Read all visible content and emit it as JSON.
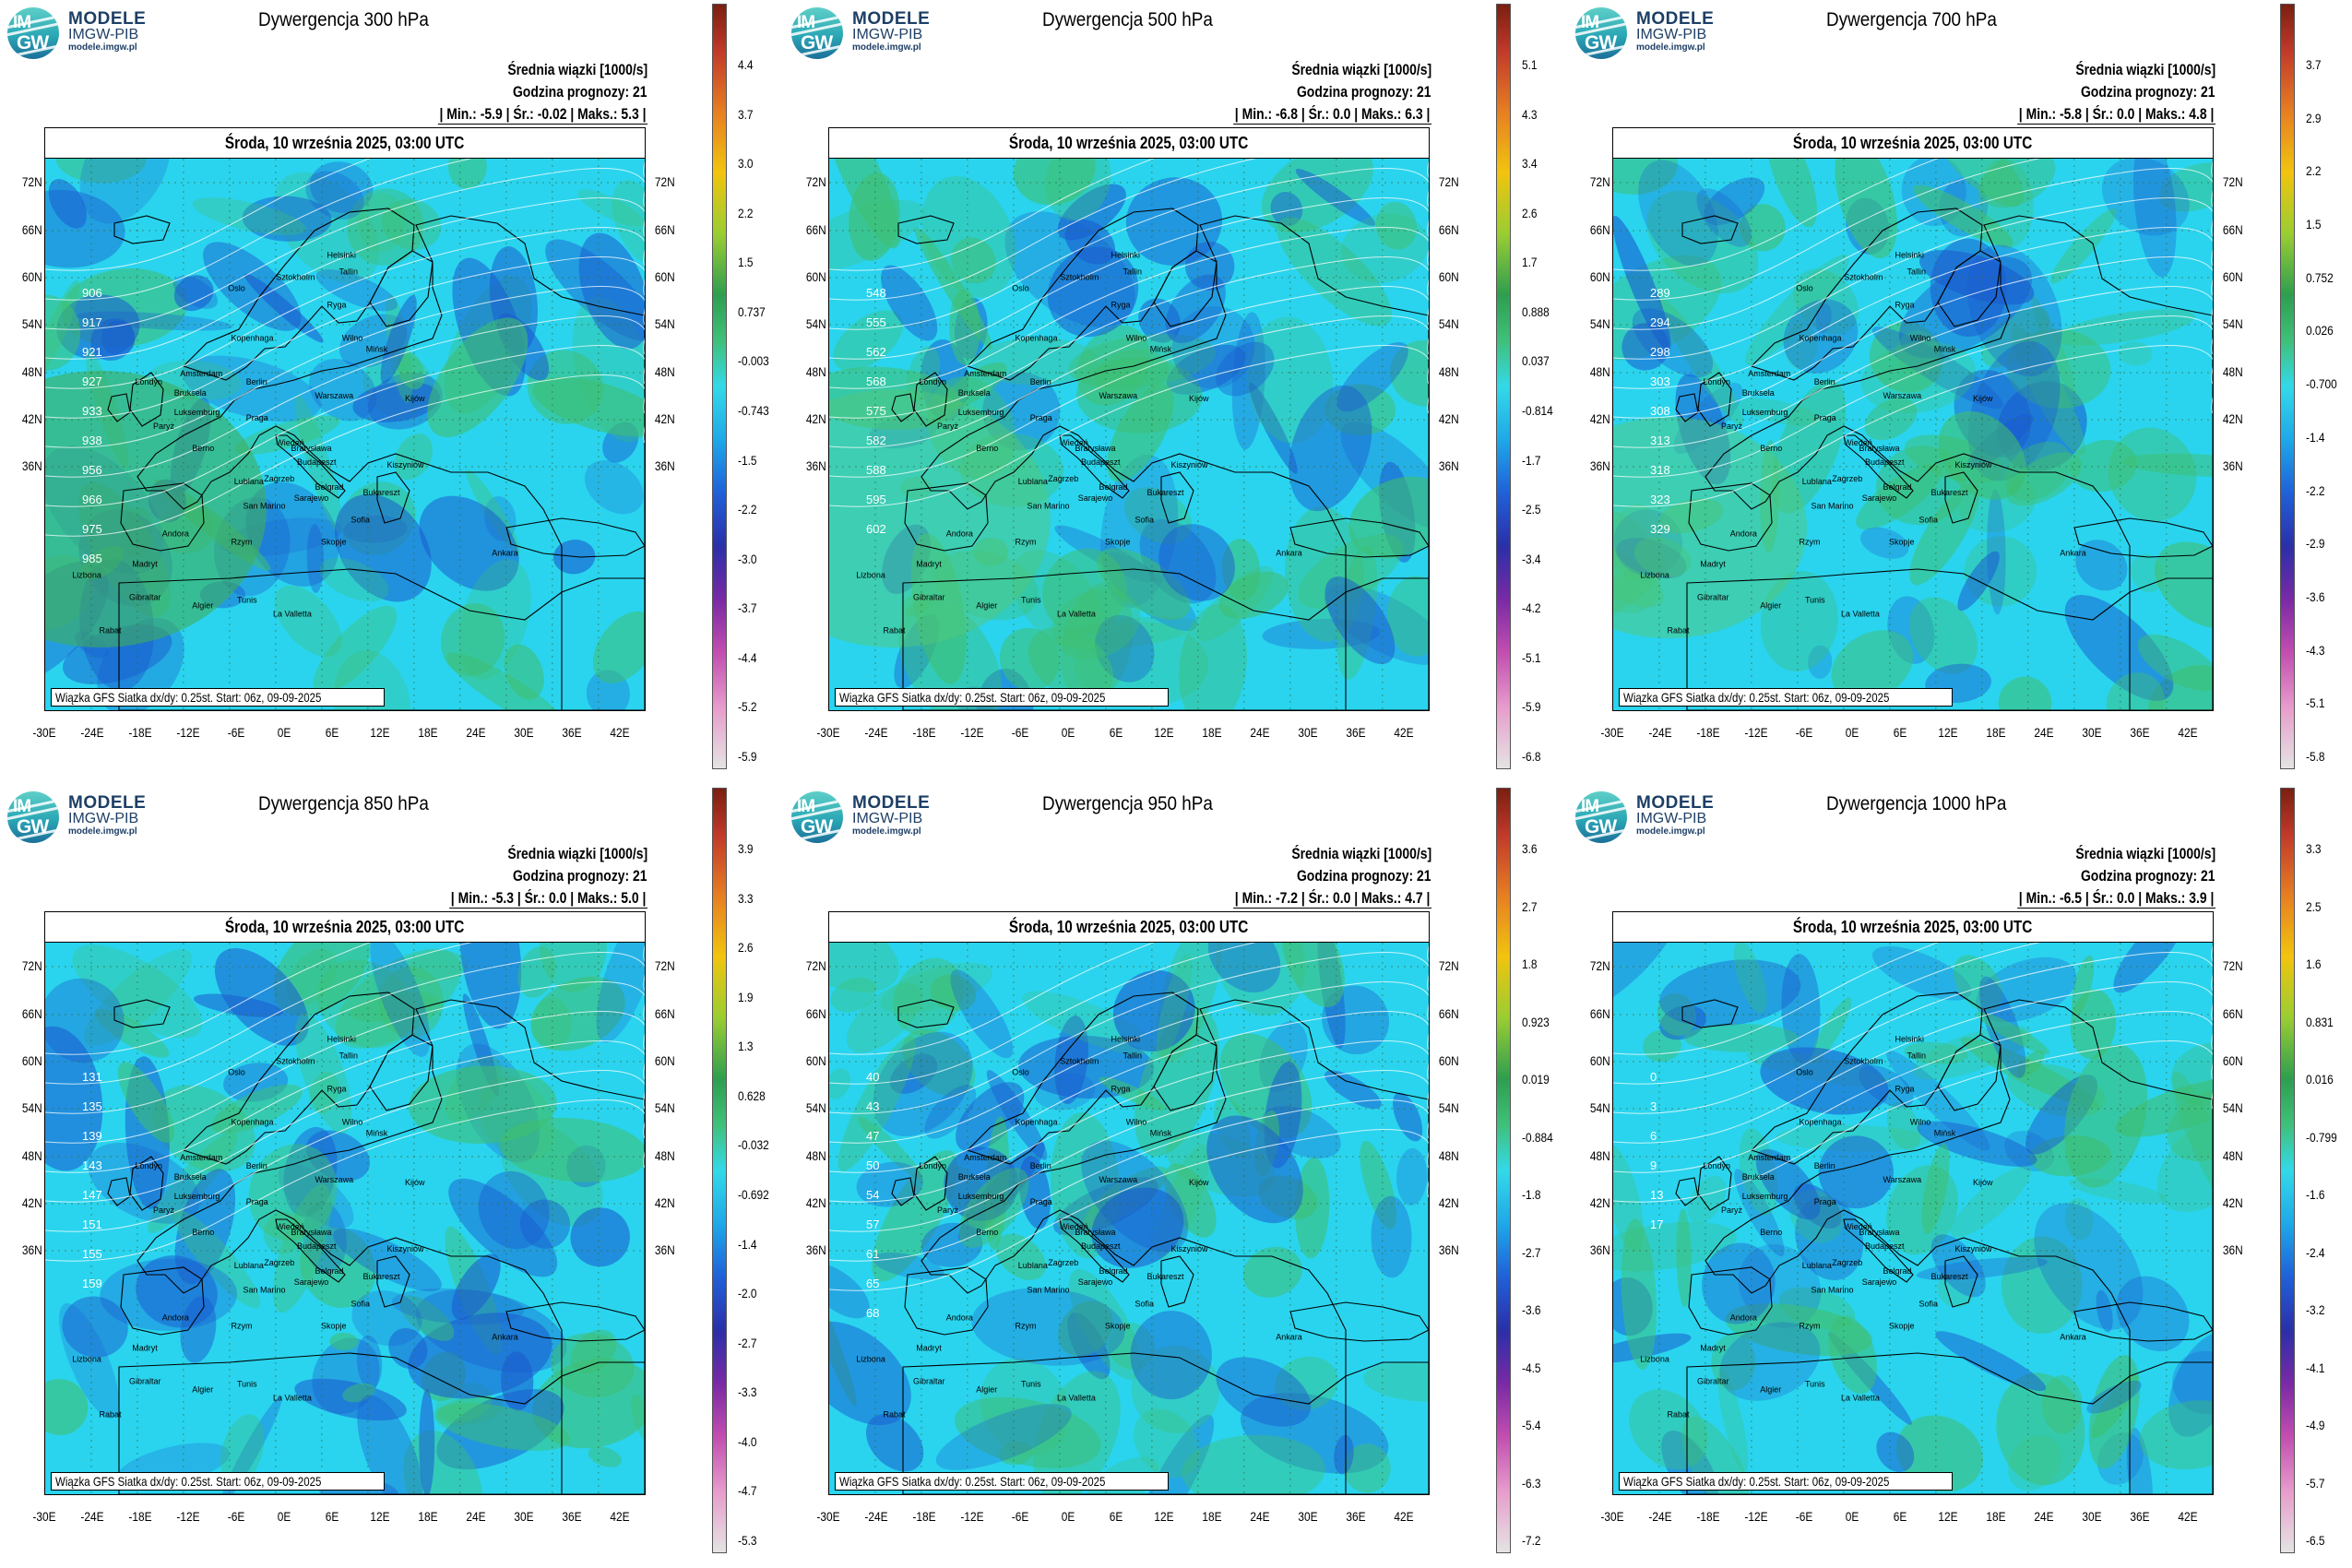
{
  "logo": {
    "line1": "MODELE",
    "line2": "IMGW-PIB",
    "line3": "modele.imgw.pl",
    "disc_top": "IM",
    "disc_bottom": "GW"
  },
  "common": {
    "subtitle_mean": "Średnia wiązki [1000/s]",
    "forecast_hour": "Godzina prognozy: 21",
    "date": "Środa, 10 września 2025, 03:00 UTC",
    "footer": "Wiązka GFS Siatka dx/dy: 0.25st. Start: 06z, 09-09-2025",
    "lat_labels": [
      "72N",
      "66N",
      "60N",
      "54N",
      "48N",
      "42N",
      "36N"
    ],
    "lon_labels": [
      "-30E",
      "-24E",
      "-18E",
      "-12E",
      "-6E",
      "0E",
      "6E",
      "12E",
      "18E",
      "24E",
      "30E",
      "36E",
      "42E"
    ],
    "cities": [
      "Oslo",
      "Sztokholm",
      "Helsinki",
      "Tallin",
      "Ryga",
      "Wilno",
      "Mińsk",
      "Kopenhaga",
      "Amsterdam",
      "Londyn",
      "Bruksela",
      "Luksemburg",
      "Berlin",
      "Warszawa",
      "Praga",
      "Wiedeń",
      "Paryż",
      "Berno",
      "Bratysława",
      "Budapeszt",
      "Kiszyniów",
      "Kijów",
      "Zagrzeb",
      "Lublana",
      "Belgrad",
      "Bukareszt",
      "Sarajewo",
      "Sofia",
      "San Marino",
      "Andora",
      "Madryt",
      "Rzym",
      "Skopje",
      "Ankara",
      "Lizbona",
      "Gibraltar",
      "Algier",
      "Tunis",
      "La Valletta",
      "Rabat"
    ]
  },
  "colors": {
    "ocean_base": "#2ad4ee",
    "positive": "#3fbf6f",
    "negative": "#1a5ccf",
    "land_outline": "#000000"
  },
  "panels": [
    {
      "title": "Dywergencja 300 hPa",
      "min": "-5.9",
      "avg": "-0.02",
      "max": "5.3",
      "stats": "| Min.: -5.9 | Śr.: -0.02 | Maks.: 5.3 |",
      "colorbar_ticks": [
        "4.4",
        "3.7",
        "3.0",
        "2.2",
        "1.5",
        "0.737",
        "-0.003",
        "-0.743",
        "-1.5",
        "-2.2",
        "-3.0",
        "-3.7",
        "-4.4",
        "-5.2",
        "-5.9"
      ],
      "contours": [
        "906",
        "917",
        "921",
        "927",
        "933",
        "938",
        "956",
        "966",
        "975",
        "985"
      ]
    },
    {
      "title": "Dywergencja 500 hPa",
      "min": "-6.8",
      "avg": "0.0",
      "max": "6.3",
      "stats": "| Min.: -6.8 | Śr.: 0.0 | Maks.: 6.3 |",
      "colorbar_ticks": [
        "5.1",
        "4.3",
        "3.4",
        "2.6",
        "1.7",
        "0.888",
        "0.037",
        "-0.814",
        "-1.7",
        "-2.5",
        "-3.4",
        "-4.2",
        "-5.1",
        "-5.9",
        "-6.8"
      ],
      "contours": [
        "548",
        "555",
        "562",
        "568",
        "575",
        "582",
        "588",
        "595",
        "602"
      ]
    },
    {
      "title": "Dywergencja 700 hPa",
      "min": "-5.8",
      "avg": "0.0",
      "max": "4.8",
      "stats": "| Min.: -5.8 | Śr.: 0.0 | Maks.: 4.8 |",
      "colorbar_ticks": [
        "3.7",
        "2.9",
        "2.2",
        "1.5",
        "0.752",
        "0.026",
        "-0.700",
        "-1.4",
        "-2.2",
        "-2.9",
        "-3.6",
        "-4.3",
        "-5.1",
        "-5.8"
      ],
      "contours": [
        "289",
        "294",
        "298",
        "303",
        "308",
        "313",
        "318",
        "323",
        "329"
      ]
    },
    {
      "title": "Dywergencja 850 hPa",
      "min": "-5.3",
      "avg": "0.0",
      "max": "5.0",
      "stats": "| Min.: -5.3 | Śr.: 0.0 | Maks.: 5.0 |",
      "colorbar_ticks": [
        "3.9",
        "3.3",
        "2.6",
        "1.9",
        "1.3",
        "0.628",
        "-0.032",
        "-0.692",
        "-1.4",
        "-2.0",
        "-2.7",
        "-3.3",
        "-4.0",
        "-4.7",
        "-5.3"
      ],
      "contours": [
        "131",
        "135",
        "139",
        "143",
        "147",
        "151",
        "155",
        "159"
      ]
    },
    {
      "title": "Dywergencja 950 hPa",
      "min": "-7.2",
      "avg": "0.0",
      "max": "4.7",
      "stats": "| Min.: -7.2 | Śr.: 0.0 | Maks.: 4.7 |",
      "colorbar_ticks": [
        "3.6",
        "2.7",
        "1.8",
        "0.923",
        "0.019",
        "-0.884",
        "-1.8",
        "-2.7",
        "-3.6",
        "-4.5",
        "-5.4",
        "-6.3",
        "-7.2"
      ],
      "contours": [
        "40",
        "43",
        "47",
        "50",
        "54",
        "57",
        "61",
        "65",
        "68"
      ]
    },
    {
      "title": "Dywergencja 1000 hPa",
      "min": "-6.5",
      "avg": "0.0",
      "max": "3.9",
      "stats": "| Min.: -6.5 | Śr.: 0.0 | Maks.: 3.9 |",
      "colorbar_ticks": [
        "3.3",
        "2.5",
        "1.6",
        "0.831",
        "0.016",
        "-0.799",
        "-1.6",
        "-2.4",
        "-3.2",
        "-4.1",
        "-4.9",
        "-5.7",
        "-6.5"
      ],
      "contours": [
        "0",
        "3",
        "6",
        "9",
        "13",
        "17"
      ]
    }
  ]
}
